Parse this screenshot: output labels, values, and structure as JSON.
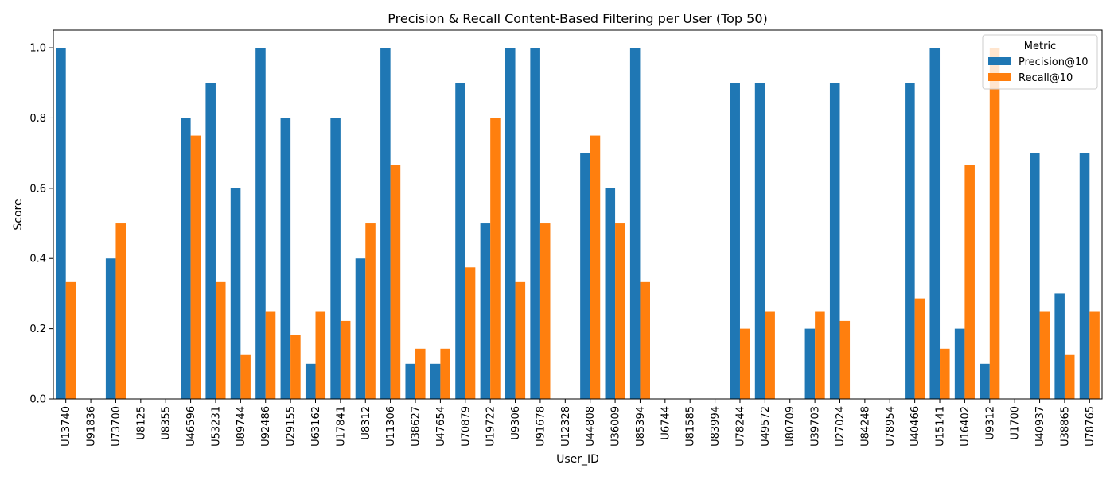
{
  "chart_data": {
    "type": "bar",
    "title": "Precision & Recall Content-Based Filtering per User (Top 50)",
    "xlabel": "User_ID",
    "ylabel": "Score",
    "ylim": [
      0,
      1.05
    ],
    "yticks": [
      "0.0",
      "0.2",
      "0.4",
      "0.6",
      "0.8",
      "1.0"
    ],
    "grid": false,
    "legend": {
      "title": "Metric",
      "placement": "top-right"
    },
    "categories": [
      "U13740",
      "U91836",
      "U73700",
      "U8125",
      "U8355",
      "U46596",
      "U53231",
      "U89744",
      "U92486",
      "U29155",
      "U63162",
      "U17841",
      "U8312",
      "U11306",
      "U38627",
      "U47654",
      "U70879",
      "U19722",
      "U9306",
      "U91678",
      "U12328",
      "U44808",
      "U36009",
      "U85394",
      "U6744",
      "U81585",
      "U83994",
      "U78244",
      "U49572",
      "U80709",
      "U39703",
      "U27024",
      "U84248",
      "U78954",
      "U40466",
      "U15141",
      "U16402",
      "U9312",
      "U1700",
      "U40937",
      "U38865",
      "U78765"
    ],
    "series": [
      {
        "name": "Precision@10",
        "color": "#1f77b4",
        "values": [
          1.0,
          0,
          0.4,
          0,
          0,
          0.8,
          0.9,
          0.6,
          1.0,
          0.8,
          0.1,
          0.8,
          0.4,
          1.0,
          0.1,
          0.1,
          0.9,
          0.5,
          1.0,
          1.0,
          0,
          0.7,
          0.6,
          1.0,
          0,
          0,
          0,
          0.9,
          0.9,
          0,
          0.2,
          0.9,
          0,
          0,
          0.9,
          1.0,
          0.2,
          0.1,
          0,
          0.7,
          0.3,
          0.7
        ]
      },
      {
        "name": "Recall@10",
        "color": "#ff7f0e",
        "values": [
          0.333,
          0,
          0.5,
          0,
          0,
          0.75,
          0.333,
          0.125,
          0.25,
          0.182,
          0.25,
          0.222,
          0.5,
          0.667,
          0.143,
          0.143,
          0.375,
          0.8,
          0.333,
          0.5,
          0,
          0.75,
          0.5,
          0.333,
          0,
          0,
          0,
          0.2,
          0.25,
          0,
          0.25,
          0.222,
          0,
          0,
          0.286,
          0.143,
          0.667,
          1.0,
          0,
          0.25,
          0.125,
          0.25
        ]
      }
    ]
  }
}
